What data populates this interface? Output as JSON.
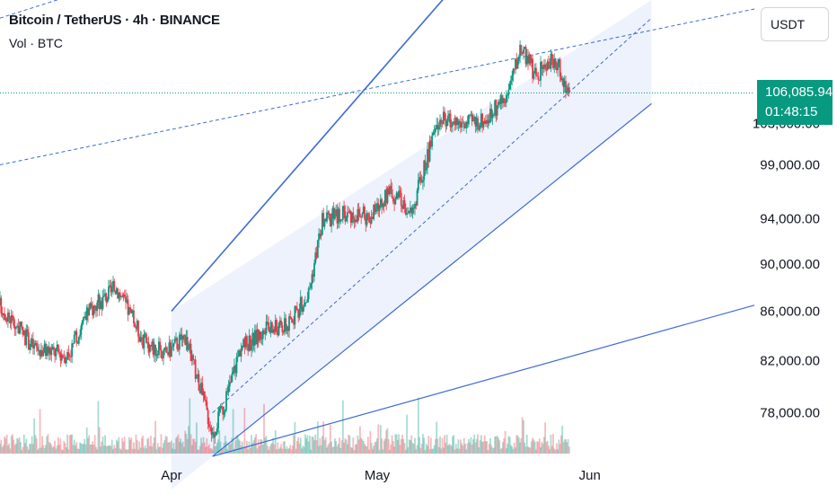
{
  "header": {
    "title": "Bitcoin / TetherUS · 4h · BINANCE",
    "volume_label": "Vol · BTC"
  },
  "currency_selector": "USDT",
  "last_price": {
    "price": "106,085.94",
    "countdown": "01:48:15",
    "color": "#089981"
  },
  "chart_data": {
    "type": "candlestick",
    "instrument": "Bitcoin / TetherUS",
    "interval": "4h",
    "exchange": "BINANCE",
    "y_axis_ticks": [
      "78,000.00",
      "82,000.00",
      "86,000.00",
      "90,000.00",
      "94,000.00",
      "99,000.00",
      "103,000.00"
    ],
    "y_scale": "log",
    "ylim": [
      75000,
      116000
    ],
    "x_axis_ticks": [
      "Apr",
      "May",
      "Jun"
    ],
    "xlim": [
      "2025-03-07",
      "2025-06-25"
    ],
    "last_price": 106085.94,
    "up_color": "#089981",
    "down_color": "#f23645",
    "drawn_lines": [
      {
        "kind": "solid",
        "from": [
          "2025-04-01",
          86000
        ],
        "to": [
          "2025-05-15",
          120000
        ]
      },
      {
        "kind": "solid",
        "from": [
          "2025-04-07",
          74800
        ],
        "to": [
          "2025-06-10",
          105000
        ]
      },
      {
        "kind": "solid",
        "from": [
          "2025-04-07",
          74800
        ],
        "to": [
          "2025-06-25",
          86500
        ]
      },
      {
        "kind": "dashed",
        "from": [
          "2025-04-07",
          78000
        ],
        "to": [
          "2025-06-10",
          114000
        ]
      },
      {
        "kind": "dashed",
        "from": [
          "2025-03-07",
          99000
        ],
        "to": [
          "2025-06-25",
          115000
        ]
      },
      {
        "kind": "dashed",
        "from": [
          "2025-03-07",
          114000
        ],
        "to": [
          "2025-04-20",
          125000
        ]
      }
    ],
    "channel_fill": {
      "from": "2025-04-01",
      "to": "2025-06-10",
      "color": "#e8edfb"
    },
    "series_key_points": [
      {
        "date": "2025-03-07",
        "close": 86500
      },
      {
        "date": "2025-03-12",
        "close": 83000
      },
      {
        "date": "2025-03-17",
        "close": 82500
      },
      {
        "date": "2025-03-20",
        "close": 86000
      },
      {
        "date": "2025-03-24",
        "close": 88000
      },
      {
        "date": "2025-03-28",
        "close": 83500
      },
      {
        "date": "2025-03-31",
        "close": 82500
      },
      {
        "date": "2025-04-03",
        "close": 84000
      },
      {
        "date": "2025-04-07",
        "close": 76500
      },
      {
        "date": "2025-04-09",
        "close": 79000
      },
      {
        "date": "2025-04-11",
        "close": 83000
      },
      {
        "date": "2025-04-15",
        "close": 84500
      },
      {
        "date": "2025-04-18",
        "close": 84800
      },
      {
        "date": "2025-04-21",
        "close": 87500
      },
      {
        "date": "2025-04-23",
        "close": 93800
      },
      {
        "date": "2025-04-26",
        "close": 94500
      },
      {
        "date": "2025-04-30",
        "close": 94200
      },
      {
        "date": "2025-05-03",
        "close": 96500
      },
      {
        "date": "2025-05-06",
        "close": 94500
      },
      {
        "date": "2025-05-08",
        "close": 99000
      },
      {
        "date": "2025-05-10",
        "close": 103500
      },
      {
        "date": "2025-05-14",
        "close": 103000
      },
      {
        "date": "2025-05-17",
        "close": 103500
      },
      {
        "date": "2025-05-20",
        "close": 106000
      },
      {
        "date": "2025-05-22",
        "close": 111000
      },
      {
        "date": "2025-05-24",
        "close": 108000
      },
      {
        "date": "2025-05-27",
        "close": 109500
      },
      {
        "date": "2025-05-29",
        "close": 106000
      }
    ]
  }
}
